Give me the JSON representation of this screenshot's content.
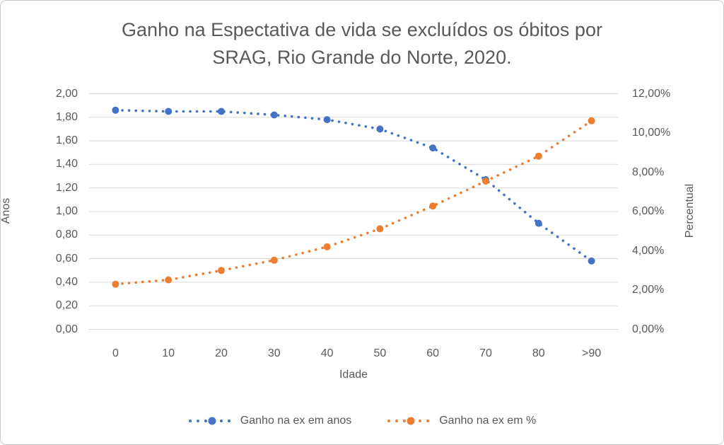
{
  "chart_data": {
    "type": "line",
    "style": "dotted-lines-with-circle-markers",
    "title_line1": "Ganho na Espectativa de vida se excluídos os óbitos por",
    "title_line2": "SRAG, Rio Grande do Norte, 2020.",
    "categories": [
      "0",
      "10",
      "20",
      "30",
      "40",
      "50",
      "60",
      "70",
      "80",
      ">90"
    ],
    "xlabel": "Idade",
    "grid": "horizontal",
    "legend_position": "bottom",
    "left_axis": {
      "label": "Anos",
      "min": 0,
      "max": 2.0,
      "tick_step": 0.2,
      "ticks": [
        "2,00",
        "1,80",
        "1,60",
        "1,40",
        "1,20",
        "1,00",
        "0,80",
        "0,60",
        "0,40",
        "0,20",
        "0,00"
      ]
    },
    "right_axis": {
      "label": "Percentual",
      "min": 0,
      "max": 12.0,
      "tick_step": 2.0,
      "ticks": [
        "12,00%",
        "10,00%",
        "8,00%",
        "6,00%",
        "4,00%",
        "2,00%",
        "0,00%"
      ]
    },
    "series": [
      {
        "name": "Ganho na ex em anos",
        "axis": "left",
        "color": "#4472C4",
        "values": [
          1.86,
          1.85,
          1.85,
          1.82,
          1.78,
          1.7,
          1.54,
          1.27,
          0.9,
          0.58
        ]
      },
      {
        "name": "Ganho na ex em %",
        "axis": "right",
        "color": "#ED7D31",
        "values": [
          2.3,
          2.52,
          3.0,
          3.52,
          4.2,
          5.12,
          6.28,
          7.55,
          8.82,
          10.62
        ]
      }
    ],
    "colors": {
      "grid": "#D9D9D9",
      "text": "#595959"
    }
  }
}
